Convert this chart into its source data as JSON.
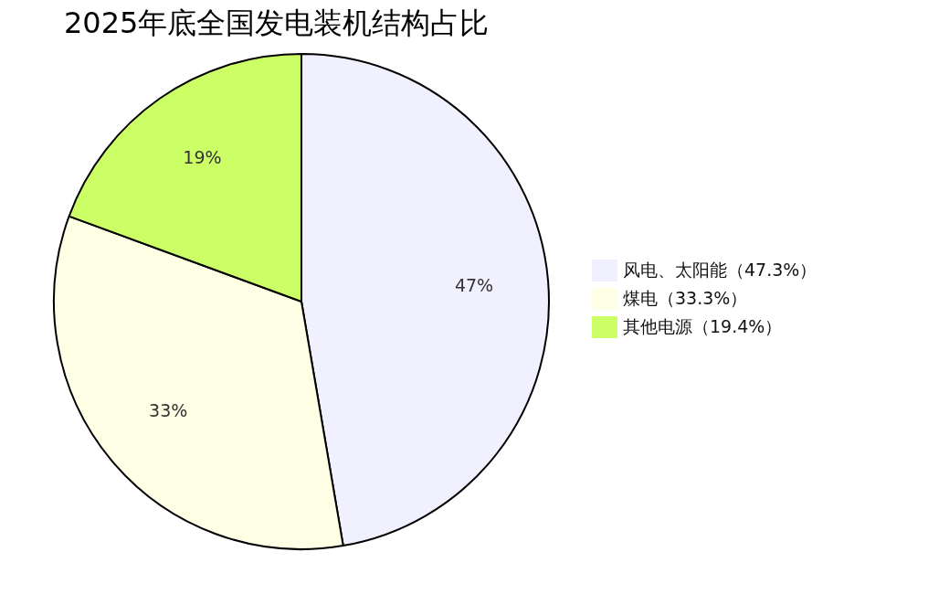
{
  "chart_data": {
    "type": "pie",
    "title": "2025年底全国发电装机结构占比",
    "categories": [
      "风电、太阳能（47.3%）",
      "煤电（33.3%）",
      "其他电源（19.4%）"
    ],
    "values": [
      47.3,
      33.3,
      19.4
    ],
    "colors": [
      "#f0f0ff",
      "#ffffe6",
      "#ccff66"
    ],
    "value_labels": [
      "47%",
      "33%",
      "19%"
    ],
    "legend": "right"
  }
}
